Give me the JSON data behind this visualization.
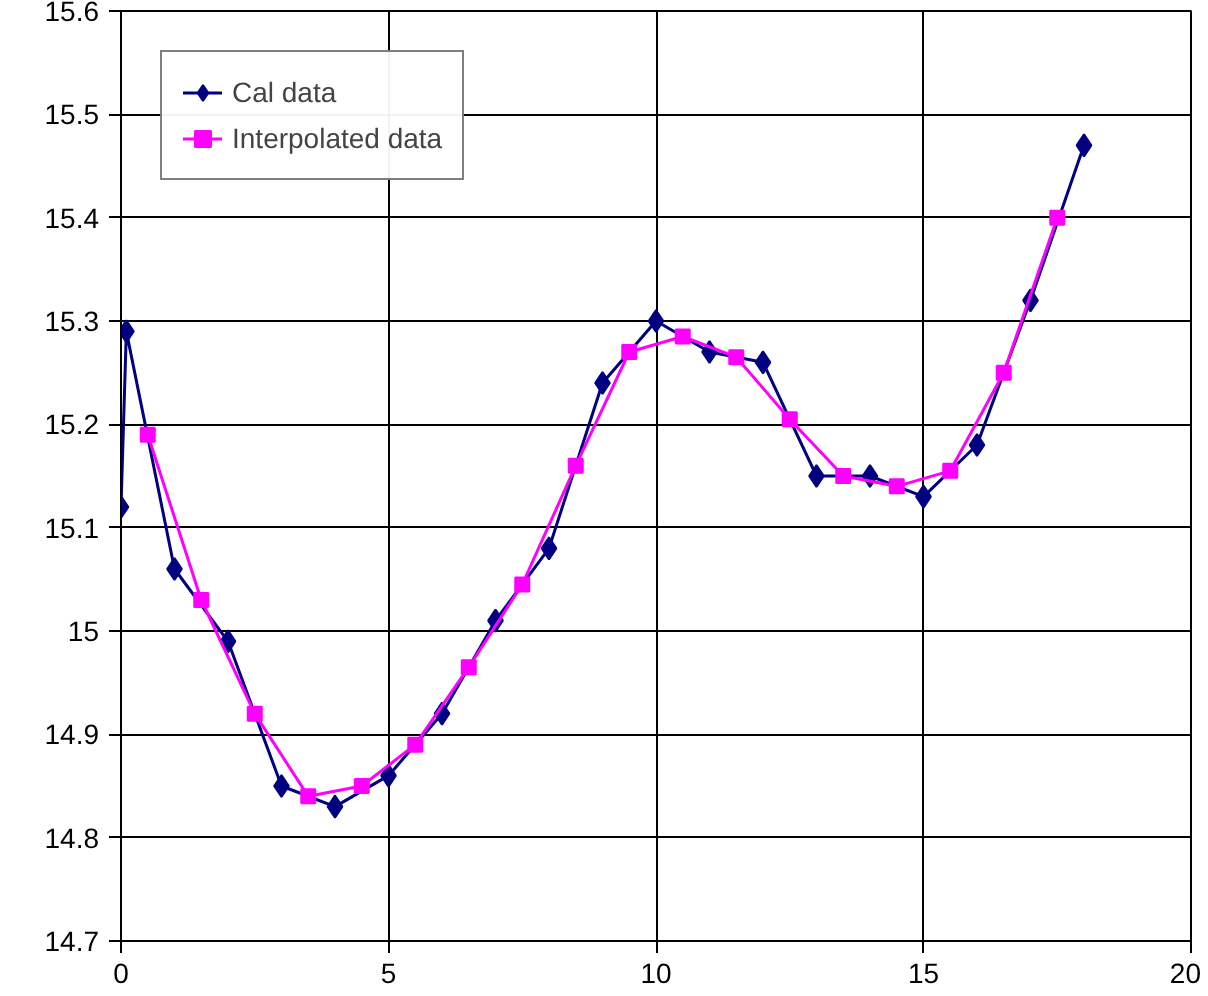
{
  "chart_data": {
    "type": "line",
    "xlim": [
      0,
      20
    ],
    "ylim": [
      14.7,
      15.6
    ],
    "xticks": [
      0,
      5,
      10,
      15,
      20
    ],
    "yticks": [
      14.7,
      14.8,
      14.9,
      15,
      15.1,
      15.2,
      15.3,
      15.4,
      15.5,
      15.6
    ],
    "grid": true,
    "legend": "top left",
    "line_style": "solid",
    "series": [
      {
        "name": "Cal data",
        "color": "#000080",
        "marker": "diamond",
        "x": [
          0,
          0.1,
          1,
          2,
          3,
          4,
          5,
          6,
          7,
          8,
          9,
          10,
          11,
          12,
          13,
          14,
          15,
          16,
          17,
          18
        ],
        "values": [
          15.12,
          15.29,
          15.06,
          14.99,
          14.85,
          14.83,
          14.86,
          14.92,
          15.01,
          15.08,
          15.24,
          15.3,
          15.27,
          15.26,
          15.15,
          15.15,
          15.13,
          15.18,
          15.32,
          15.47
        ]
      },
      {
        "name": "Interpolated data",
        "color": "#ff00ff",
        "marker": "square",
        "x": [
          0.5,
          1.5,
          2.5,
          3.5,
          4.5,
          5.5,
          6.5,
          7.5,
          8.5,
          9.5,
          10.5,
          11.5,
          12.5,
          13.5,
          14.5,
          15.5,
          16.5,
          17.5
        ],
        "values": [
          15.19,
          15.03,
          14.92,
          14.84,
          14.85,
          14.89,
          14.965,
          15.045,
          15.16,
          15.27,
          15.285,
          15.265,
          15.205,
          15.15,
          15.14,
          15.155,
          15.25,
          15.4
        ]
      }
    ]
  }
}
